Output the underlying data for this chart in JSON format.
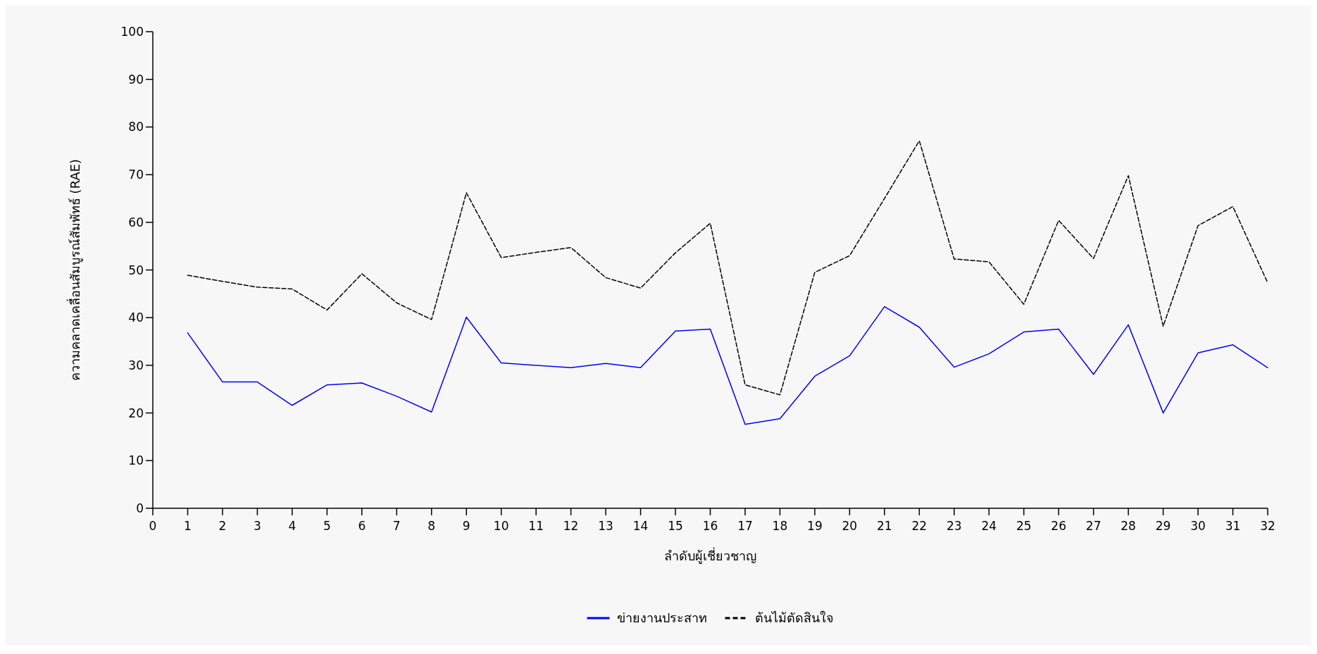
{
  "chart_data": {
    "type": "line",
    "xlabel": "ลำดับผู้เชี่ยวชาญ",
    "ylabel": "ความคลาดเคลื่อนสัมบูรณ์สัมพัทธ์ (RAE)",
    "x": [
      1,
      2,
      3,
      4,
      5,
      6,
      7,
      8,
      9,
      10,
      11,
      12,
      13,
      14,
      15,
      16,
      17,
      18,
      19,
      20,
      21,
      22,
      23,
      24,
      25,
      26,
      27,
      28,
      29,
      30,
      31,
      32
    ],
    "xlim": [
      0,
      32
    ],
    "xticks": [
      0,
      1,
      2,
      3,
      4,
      5,
      6,
      7,
      8,
      9,
      10,
      11,
      12,
      13,
      14,
      15,
      16,
      17,
      18,
      19,
      20,
      21,
      22,
      23,
      24,
      25,
      26,
      27,
      28,
      29,
      30,
      31,
      32
    ],
    "ylim": [
      0,
      100
    ],
    "yticks": [
      0,
      10,
      20,
      30,
      40,
      50,
      60,
      70,
      80,
      90,
      100
    ],
    "grid": false,
    "legend": "bottom",
    "marker": "none",
    "series": [
      {
        "name": "ข่ายงานประสาท",
        "color": "#0000ff",
        "line_style": "solid",
        "values": [
          36.8,
          26.5,
          26.5,
          21.6,
          25.9,
          26.3,
          23.5,
          20.2,
          40.1,
          30.5,
          30.0,
          29.5,
          30.4,
          29.5,
          37.2,
          37.6,
          17.6,
          18.8,
          27.7,
          32.0,
          42.3,
          38.0,
          29.6,
          32.4,
          37.0,
          37.6,
          28.1,
          38.5,
          20.0,
          32.6,
          34.3,
          29.5
        ]
      },
      {
        "name": "ต้นไม้ตัดสินใจ",
        "color": "#000000",
        "line_style": "dashed",
        "values": [
          48.9,
          47.6,
          46.4,
          46.0,
          41.6,
          49.2,
          43.1,
          39.6,
          66.2,
          52.6,
          53.7,
          54.7,
          48.4,
          46.2,
          53.6,
          59.8,
          25.9,
          23.8,
          49.5,
          53.0,
          65.0,
          77.1,
          52.3,
          51.7,
          42.8,
          60.4,
          52.4,
          69.8,
          38.2,
          59.3,
          63.3,
          47.3
        ]
      }
    ]
  }
}
